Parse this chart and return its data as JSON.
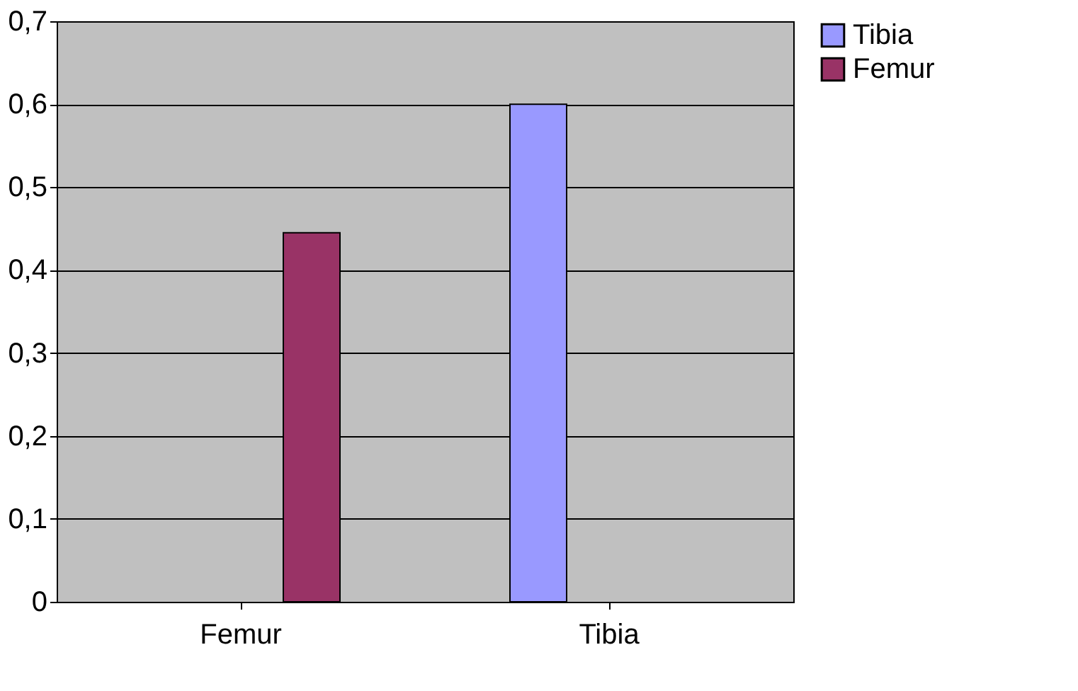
{
  "chart_data": {
    "type": "bar",
    "categories": [
      "Femur",
      "Tibia"
    ],
    "series": [
      {
        "name": "Tibia",
        "color": "#9999ff",
        "values": [
          null,
          0.6
        ]
      },
      {
        "name": "Femur",
        "color": "#993366",
        "values": [
          0.445,
          null
        ]
      }
    ],
    "ylim": [
      0,
      0.7
    ],
    "yticks": [
      {
        "value": 0,
        "label": "0"
      },
      {
        "value": 0.1,
        "label": "0,1"
      },
      {
        "value": 0.2,
        "label": "0,2"
      },
      {
        "value": 0.3,
        "label": "0,3"
      },
      {
        "value": 0.4,
        "label": "0,4"
      },
      {
        "value": 0.5,
        "label": "0,5"
      },
      {
        "value": 0.6,
        "label": "0,6"
      },
      {
        "value": 0.7,
        "label": "0,7"
      }
    ],
    "grid": "y",
    "legend": "right"
  }
}
